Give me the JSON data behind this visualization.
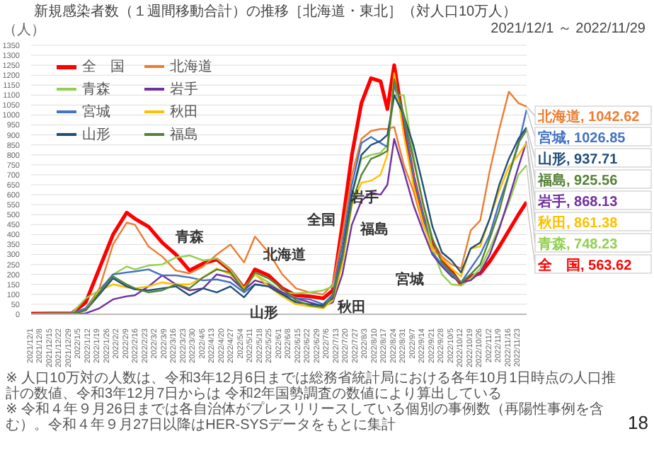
{
  "chart_data": {
    "type": "line",
    "title": "新規感染者数（１週間移動合計）の推移［北海道・東北］（対人口10万人）",
    "subtitle": "2021/12/1 ～ 2022/11/29",
    "ylabel": "（人）",
    "x": [
      "2021-12-01",
      "2021-12-31",
      "2022-01-10",
      "2022-01-20",
      "2022-01-30",
      "2022-02-09",
      "2022-02-15",
      "2022-02-25",
      "2022-03-07",
      "2022-03-17",
      "2022-03-27",
      "2022-04-06",
      "2022-04-16",
      "2022-04-26",
      "2022-05-06",
      "2022-05-14",
      "2022-05-24",
      "2022-06-03",
      "2022-06-13",
      "2022-06-23",
      "2022-07-03",
      "2022-07-10",
      "2022-07-17",
      "2022-07-24",
      "2022-07-31",
      "2022-08-07",
      "2022-08-14",
      "2022-08-19",
      "2022-08-24",
      "2022-08-31",
      "2022-09-07",
      "2022-09-14",
      "2022-09-21",
      "2022-09-28",
      "2022-10-05",
      "2022-10-12",
      "2022-10-19",
      "2022-10-26",
      "2022-11-02",
      "2022-11-09",
      "2022-11-16",
      "2022-11-23",
      "2022-11-29"
    ],
    "series": [
      {
        "name": "全　国",
        "color": "#ff0000",
        "values": [
          3,
          5,
          60,
          230,
          400,
          510,
          480,
          440,
          360,
          300,
          220,
          255,
          275,
          220,
          130,
          225,
          195,
          130,
          95,
          90,
          80,
          120,
          450,
          800,
          1060,
          1185,
          1170,
          1030,
          1250,
          950,
          690,
          490,
          360,
          275,
          215,
          150,
          190,
          205,
          265,
          340,
          420,
          500,
          563.62
        ],
        "value_labels": [
          null,
          null,
          null,
          null,
          null,
          null,
          null,
          null,
          null,
          null,
          null,
          null,
          null,
          null,
          null,
          null,
          null,
          null,
          null,
          null,
          null,
          null,
          null,
          null,
          null,
          null,
          null,
          null,
          null,
          null,
          null,
          null,
          null,
          null,
          null,
          null,
          null,
          null,
          null,
          null,
          null,
          null,
          "全　国, 563.62"
        ]
      },
      {
        "name": "北海道",
        "color": "#ed7d31",
        "values": [
          3,
          5,
          25,
          130,
          350,
          460,
          450,
          340,
          290,
          220,
          205,
          240,
          300,
          350,
          260,
          390,
          310,
          200,
          130,
          110,
          100,
          150,
          400,
          700,
          880,
          920,
          930,
          930,
          940,
          750,
          620,
          450,
          340,
          290,
          250,
          230,
          420,
          470,
          720,
          930,
          1117,
          1060,
          1042.62
        ],
        "value_labels": [
          null,
          null,
          null,
          null,
          null,
          null,
          null,
          null,
          null,
          null,
          null,
          null,
          null,
          null,
          null,
          null,
          null,
          null,
          null,
          null,
          null,
          null,
          null,
          null,
          null,
          null,
          null,
          null,
          null,
          null,
          null,
          null,
          null,
          null,
          null,
          null,
          null,
          null,
          null,
          null,
          null,
          null,
          "北海道, 1042.62"
        ]
      },
      {
        "name": "青森",
        "color": "#92d050",
        "values": [
          3,
          5,
          80,
          120,
          200,
          240,
          225,
          245,
          250,
          285,
          295,
          270,
          280,
          225,
          130,
          200,
          160,
          110,
          105,
          110,
          120,
          140,
          280,
          600,
          780,
          800,
          810,
          850,
          1100,
          1100,
          800,
          560,
          330,
          200,
          150,
          145,
          180,
          230,
          330,
          440,
          560,
          700,
          748.23
        ],
        "value_labels": [
          null,
          null,
          null,
          null,
          null,
          null,
          null,
          null,
          null,
          null,
          null,
          null,
          null,
          null,
          null,
          null,
          null,
          null,
          null,
          null,
          null,
          null,
          null,
          null,
          null,
          null,
          null,
          null,
          null,
          null,
          null,
          null,
          null,
          null,
          null,
          null,
          null,
          null,
          null,
          null,
          null,
          null,
          "青森, 748.23"
        ]
      },
      {
        "name": "岩手",
        "color": "#7030a0",
        "values": [
          2,
          2,
          5,
          30,
          75,
          90,
          95,
          140,
          195,
          150,
          120,
          130,
          200,
          185,
          120,
          170,
          150,
          110,
          80,
          60,
          40,
          60,
          200,
          450,
          570,
          610,
          600,
          650,
          880,
          720,
          550,
          420,
          300,
          240,
          190,
          160,
          170,
          210,
          300,
          430,
          580,
          740,
          868.13
        ],
        "value_labels": [
          null,
          null,
          null,
          null,
          null,
          null,
          null,
          null,
          null,
          null,
          null,
          null,
          null,
          null,
          null,
          null,
          null,
          null,
          null,
          null,
          null,
          null,
          null,
          null,
          null,
          null,
          null,
          null,
          null,
          null,
          null,
          null,
          null,
          null,
          null,
          null,
          null,
          null,
          null,
          null,
          null,
          null,
          "岩手, 868.13"
        ]
      },
      {
        "name": "宮城",
        "color": "#4472c4",
        "values": [
          3,
          5,
          30,
          120,
          200,
          210,
          215,
          225,
          195,
          195,
          185,
          170,
          175,
          160,
          110,
          150,
          140,
          100,
          80,
          75,
          50,
          100,
          350,
          650,
          860,
          890,
          860,
          840,
          1150,
          980,
          700,
          500,
          310,
          250,
          200,
          160,
          230,
          300,
          400,
          560,
          700,
          850,
          1026.85
        ],
        "value_labels": [
          null,
          null,
          null,
          null,
          null,
          null,
          null,
          null,
          null,
          null,
          null,
          null,
          null,
          null,
          null,
          null,
          null,
          null,
          null,
          null,
          null,
          null,
          null,
          null,
          null,
          null,
          null,
          null,
          null,
          null,
          null,
          null,
          null,
          null,
          null,
          null,
          null,
          null,
          null,
          null,
          null,
          null,
          "宮城, 1026.85"
        ]
      },
      {
        "name": "秋田",
        "color": "#ffc000",
        "values": [
          2,
          2,
          20,
          120,
          150,
          135,
          130,
          140,
          160,
          150,
          150,
          185,
          230,
          200,
          130,
          200,
          140,
          90,
          50,
          40,
          30,
          70,
          250,
          550,
          660,
          670,
          700,
          800,
          1210,
          900,
          650,
          460,
          320,
          280,
          230,
          190,
          330,
          340,
          480,
          620,
          740,
          800,
          861.38
        ],
        "value_labels": [
          null,
          null,
          null,
          null,
          null,
          null,
          null,
          null,
          null,
          null,
          null,
          null,
          null,
          null,
          null,
          null,
          null,
          null,
          null,
          null,
          null,
          null,
          null,
          null,
          null,
          null,
          null,
          null,
          null,
          null,
          null,
          null,
          null,
          null,
          null,
          null,
          null,
          null,
          null,
          null,
          null,
          null,
          "秋田, 861.38"
        ]
      },
      {
        "name": "山形",
        "color": "#1f4e79",
        "values": [
          3,
          3,
          20,
          100,
          180,
          140,
          125,
          120,
          130,
          140,
          95,
          130,
          110,
          140,
          85,
          150,
          140,
          100,
          60,
          50,
          45,
          80,
          300,
          600,
          800,
          850,
          870,
          900,
          1100,
          1000,
          850,
          650,
          440,
          310,
          270,
          210,
          330,
          360,
          480,
          650,
          780,
          880,
          937.71
        ],
        "value_labels": [
          null,
          null,
          null,
          null,
          null,
          null,
          null,
          null,
          null,
          null,
          null,
          null,
          null,
          null,
          null,
          null,
          null,
          null,
          null,
          null,
          null,
          null,
          null,
          null,
          null,
          null,
          null,
          null,
          null,
          null,
          null,
          null,
          null,
          null,
          null,
          null,
          null,
          null,
          null,
          null,
          null,
          null,
          "山形, 937.71"
        ]
      },
      {
        "name": "福島",
        "color": "#548235",
        "values": [
          3,
          3,
          20,
          110,
          190,
          150,
          130,
          110,
          120,
          150,
          130,
          185,
          225,
          210,
          120,
          210,
          180,
          130,
          70,
          45,
          35,
          90,
          280,
          560,
          700,
          780,
          800,
          820,
          1180,
          1000,
          780,
          560,
          380,
          260,
          210,
          160,
          200,
          250,
          380,
          520,
          700,
          860,
          925.56
        ],
        "value_labels": [
          null,
          null,
          null,
          null,
          null,
          null,
          null,
          null,
          null,
          null,
          null,
          null,
          null,
          null,
          null,
          null,
          null,
          null,
          null,
          null,
          null,
          null,
          null,
          null,
          null,
          null,
          null,
          null,
          null,
          null,
          null,
          null,
          null,
          null,
          null,
          null,
          null,
          null,
          null,
          null,
          null,
          null,
          "福島, 925.56"
        ]
      }
    ],
    "xlim": [
      "2021-12-01",
      "2022-11-29"
    ],
    "xticks": [
      {
        "value": "2021-12-01",
        "label": "2021/12/1"
      },
      {
        "value": "2021-12-08",
        "label": "2021/12/8"
      },
      {
        "value": "2021-12-15",
        "label": "2021/12/15"
      },
      {
        "value": "2021-12-22",
        "label": "2021/12/22"
      },
      {
        "value": "2021-12-29",
        "label": "2021/12/29"
      },
      {
        "value": "2022-01-05",
        "label": "2022/1/5"
      },
      {
        "value": "2022-01-12",
        "label": "2022/1/12"
      },
      {
        "value": "2022-01-19",
        "label": "2022/1/19"
      },
      {
        "value": "2022-01-26",
        "label": "2022/1/26"
      },
      {
        "value": "2022-02-02",
        "label": "2022/2/2"
      },
      {
        "value": "2022-02-09",
        "label": "2022/2/9"
      },
      {
        "value": "2022-02-16",
        "label": "2022/2/16"
      },
      {
        "value": "2022-02-23",
        "label": "2022/2/23"
      },
      {
        "value": "2022-03-02",
        "label": "2022/3/2"
      },
      {
        "value": "2022-03-09",
        "label": "2022/3/9"
      },
      {
        "value": "2022-03-16",
        "label": "2022/3/16"
      },
      {
        "value": "2022-03-23",
        "label": "2022/3/23"
      },
      {
        "value": "2022-03-30",
        "label": "2022/3/30"
      },
      {
        "value": "2022-04-06",
        "label": "2022/4/6"
      },
      {
        "value": "2022-04-13",
        "label": "2022/4/13"
      },
      {
        "value": "2022-04-20",
        "label": "2022/4/20"
      },
      {
        "value": "2022-04-27",
        "label": "2022/4/27"
      },
      {
        "value": "2022-05-04",
        "label": "2022/5/4"
      },
      {
        "value": "2022-05-11",
        "label": "2022/5/11"
      },
      {
        "value": "2022-05-18",
        "label": "2022/5/18"
      },
      {
        "value": "2022-05-25",
        "label": "2022/5/25"
      },
      {
        "value": "2022-06-01",
        "label": "2022/6/1"
      },
      {
        "value": "2022-06-08",
        "label": "2022/6/8"
      },
      {
        "value": "2022-06-15",
        "label": "2022/6/15"
      },
      {
        "value": "2022-06-22",
        "label": "2022/6/22"
      },
      {
        "value": "2022-06-29",
        "label": "2022/6/29"
      },
      {
        "value": "2022-07-06",
        "label": "2022/7/6"
      },
      {
        "value": "2022-07-13",
        "label": "2022/7/13"
      },
      {
        "value": "2022-07-20",
        "label": "2022/7/20"
      },
      {
        "value": "2022-07-27",
        "label": "2022/7/27"
      },
      {
        "value": "2022-08-03",
        "label": "2022/8/3"
      },
      {
        "value": "2022-08-10",
        "label": "2022/8/10"
      },
      {
        "value": "2022-08-17",
        "label": "2022/8/17"
      },
      {
        "value": "2022-08-24",
        "label": "2022/8/24"
      },
      {
        "value": "2022-08-31",
        "label": "2022/8/31"
      },
      {
        "value": "2022-09-07",
        "label": "2022/9/7"
      },
      {
        "value": "2022-09-14",
        "label": "2022/9/14"
      },
      {
        "value": "2022-09-21",
        "label": "2022/9/21"
      },
      {
        "value": "2022-09-28",
        "label": "2022/9/28"
      },
      {
        "value": "2022-10-05",
        "label": "2022/10/5"
      },
      {
        "value": "2022-10-12",
        "label": "2022/10/12"
      },
      {
        "value": "2022-10-19",
        "label": "2022/10/19"
      },
      {
        "value": "2022-10-26",
        "label": "2022/10/26"
      },
      {
        "value": "2022-11-02",
        "label": "2022/11/2"
      },
      {
        "value": "2022-11-09",
        "label": "2022/11/9"
      },
      {
        "value": "2022-11-16",
        "label": "2022/11/16"
      },
      {
        "value": "2022-11-23",
        "label": "2022/11/23"
      }
    ],
    "ylim": [
      0,
      1350
    ],
    "yticks": [
      0,
      50,
      100,
      150,
      200,
      250,
      300,
      350,
      400,
      450,
      500,
      550,
      600,
      650,
      700,
      750,
      800,
      850,
      900,
      950,
      1000,
      1050,
      1100,
      1150,
      1200,
      1250,
      1300,
      1350
    ],
    "grid": "y",
    "legend": "top left",
    "marker": "none",
    "annotations": [
      {
        "text": "青森",
        "x": "2022-03-27",
        "y": 295
      },
      {
        "text": "北海道",
        "x": "2022-05-14",
        "y": 390
      },
      {
        "text": "山形",
        "x": "2022-05-06",
        "y": 85
      },
      {
        "text": "全国",
        "x": "2022-07-17",
        "y": 450
      },
      {
        "text": "秋田",
        "x": "2022-07-03",
        "y": 30
      },
      {
        "text": "福島",
        "x": "2022-07-24",
        "y": 560
      },
      {
        "text": "岩手",
        "x": "2022-08-19",
        "y": 650
      },
      {
        "text": "宮城",
        "x": "2022-09-21",
        "y": 310
      },
      "※ 人口10万対の人数は、令和3年12月6日までは総務省統計局における各年10月1日時点の人口推計の数値、令和3年12月7日からは 令和2年国勢調査の数値により算出している",
      "※ 令和４年９月26日までは各自治体がプレスリリースしている個別の事例数（再陽性事例を含む）。令和４年９月27日以降はHER-SYSデータをもとに集計",
      "18"
    ]
  }
}
